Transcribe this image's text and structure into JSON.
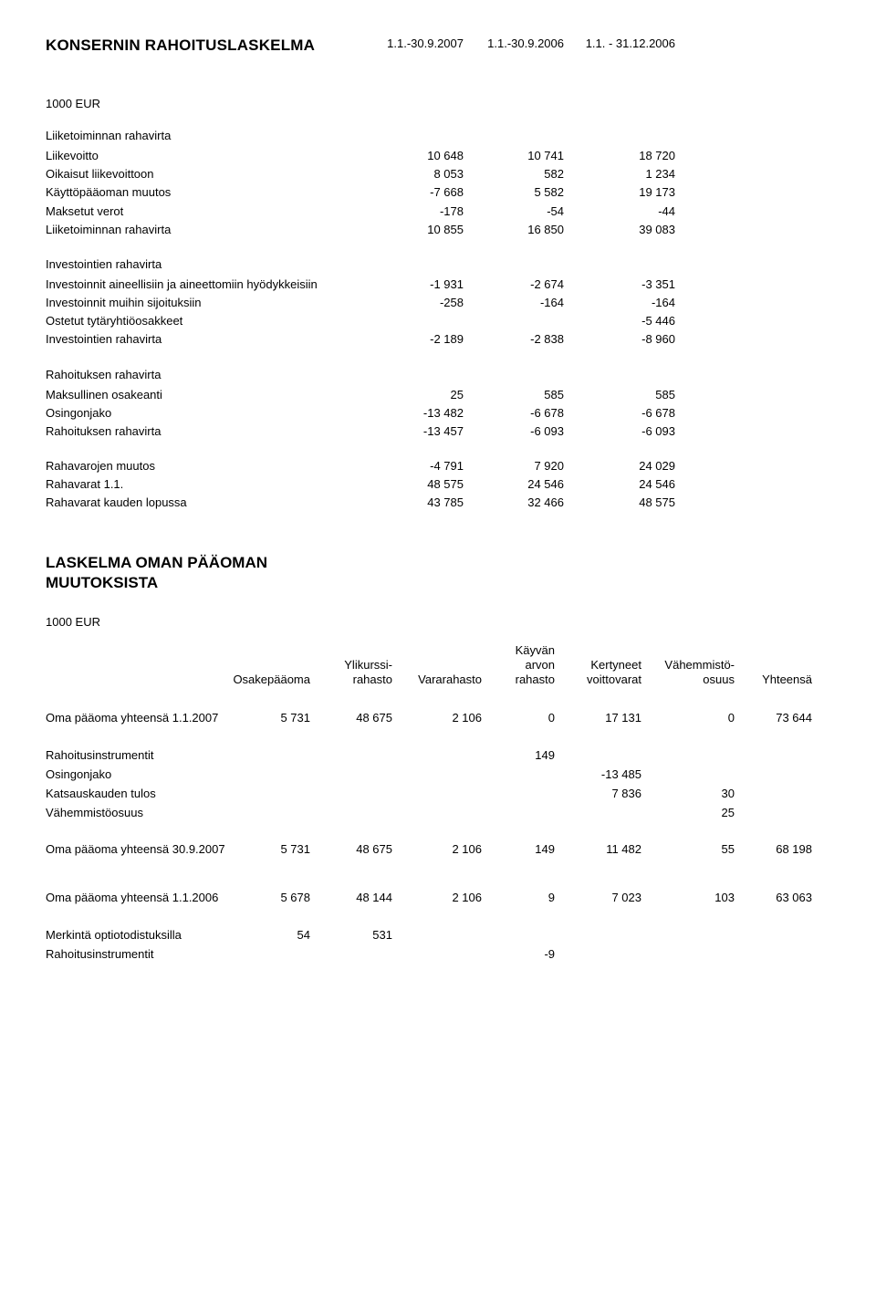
{
  "title1": "KONSERNIN RAHOITUSLASKELMA",
  "periods": [
    "1.1.-30.9.2007",
    "1.1.-30.9.2006",
    "1.1. - 31.12.2006"
  ],
  "unit": "1000 EUR",
  "sections": {
    "s1": {
      "heading": "Liiketoiminnan rahavirta",
      "rows": [
        {
          "label": "Liikevoitto",
          "v": [
            "10 648",
            "10 741",
            "18 720"
          ]
        },
        {
          "label": "Oikaisut liikevoittoon",
          "v": [
            "8 053",
            "582",
            "1 234"
          ]
        },
        {
          "label": "Käyttöpääoman muutos",
          "v": [
            "-7 668",
            "5 582",
            "19 173"
          ]
        },
        {
          "label": "Maksetut verot",
          "v": [
            "-178",
            "-54",
            "-44"
          ]
        },
        {
          "label": "Liiketoiminnan rahavirta",
          "v": [
            "10 855",
            "16 850",
            "39 083"
          ]
        }
      ]
    },
    "s2": {
      "heading": "Investointien rahavirta",
      "rows": [
        {
          "label": "Investoinnit aineellisiin ja aineettomiin hyödykkeisiin",
          "v": [
            "-1 931",
            "-2 674",
            "-3 351"
          ]
        },
        {
          "label": "Investoinnit muihin sijoituksiin",
          "v": [
            "-258",
            "-164",
            "-164"
          ]
        },
        {
          "label": "Ostetut tytäryhtiöosakkeet",
          "v": [
            "",
            "",
            "-5 446"
          ]
        },
        {
          "label": "Investointien rahavirta",
          "v": [
            "-2 189",
            "-2 838",
            "-8 960"
          ]
        }
      ]
    },
    "s3": {
      "heading": "Rahoituksen rahavirta",
      "rows": [
        {
          "label": "Maksullinen osakeanti",
          "v": [
            "25",
            "585",
            "585"
          ]
        },
        {
          "label": "Osingonjako",
          "v": [
            "-13 482",
            "-6 678",
            "-6 678"
          ]
        },
        {
          "label": "Rahoituksen rahavirta",
          "v": [
            "-13 457",
            "-6 093",
            "-6 093"
          ]
        }
      ]
    },
    "s4": {
      "rows": [
        {
          "label": "Rahavarojen muutos",
          "v": [
            "-4 791",
            "7 920",
            "24 029"
          ]
        },
        {
          "label": "Rahavarat 1.1.",
          "v": [
            "48 575",
            "24 546",
            "24 546"
          ]
        },
        {
          "label": "Rahavarat kauden lopussa",
          "v": [
            "43 785",
            "32 466",
            "48 575"
          ]
        }
      ]
    }
  },
  "title2a": "LASKELMA OMAN PÄÄOMAN",
  "title2b": "MUUTOKSISTA",
  "changes": {
    "headers": {
      "c1": "Osakepääoma",
      "c2a": "Ylikurssi-",
      "c2b": "rahasto",
      "c3": "Vararahasto",
      "c4a": "Käyvän",
      "c4b": "arvon",
      "c4c": "rahasto",
      "c5a": "Kertyneet",
      "c5b": "voittovarat",
      "c6a": "Vähemmistö-",
      "c6b": "osuus",
      "c7": "Yhteensä"
    },
    "rows": [
      {
        "label": "Oma pääoma yhteensä 1.1.2007",
        "v": [
          "5 731",
          "48 675",
          "2 106",
          "0",
          "17 131",
          "0",
          "73 644"
        ]
      },
      {
        "label": "Rahoitusinstrumentit",
        "v": [
          "",
          "",
          "",
          "149",
          "",
          "",
          ""
        ]
      },
      {
        "label": "Osingonjako",
        "v": [
          "",
          "",
          "",
          "",
          "-13 485",
          "",
          ""
        ]
      },
      {
        "label": "Katsauskauden tulos",
        "v": [
          "",
          "",
          "",
          "",
          "7 836",
          "30",
          ""
        ]
      },
      {
        "label": "Vähemmistöosuus",
        "v": [
          "",
          "",
          "",
          "",
          "",
          "25",
          ""
        ]
      },
      {
        "label": "Oma pääoma yhteensä 30.9.2007",
        "v": [
          "5 731",
          "48 675",
          "2 106",
          "149",
          "11 482",
          "55",
          "68 198"
        ]
      },
      {
        "label": "Oma pääoma yhteensä 1.1.2006",
        "v": [
          "5 678",
          "48 144",
          "2 106",
          "9",
          "7 023",
          "103",
          "63 063"
        ]
      },
      {
        "label": "Merkintä optiotodistuksilla",
        "v": [
          "54",
          "531",
          "",
          "",
          "",
          "",
          ""
        ]
      },
      {
        "label": "Rahoitusinstrumentit",
        "v": [
          "",
          "",
          "",
          "-9",
          "",
          "",
          ""
        ]
      }
    ]
  }
}
